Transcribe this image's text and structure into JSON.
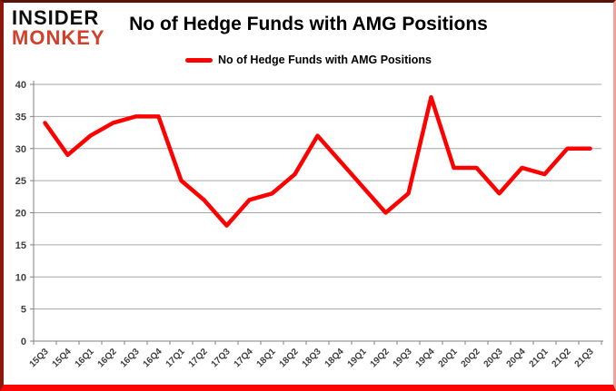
{
  "header": {
    "logo_line1": "INSIDER",
    "logo_line2": "MONKEY",
    "title": "No of Hedge Funds with AMG Positions"
  },
  "legend": {
    "label": "No of Hedge Funds with AMG Positions",
    "marker_color": "#ff0000"
  },
  "colors": {
    "line": "#ff0000",
    "logo_red": "#d23f2b",
    "frame_bottom_red": "#fb0505",
    "gridline_gray": "#a6a6a6",
    "axis_gray": "#808080",
    "tick_label_gray": "#3f3f3f"
  },
  "chart_data": {
    "type": "line",
    "title": "No of Hedge Funds with AMG Positions",
    "categories": [
      "15Q3",
      "15Q4",
      "16Q1",
      "16Q2",
      "16Q3",
      "16Q4",
      "17Q1",
      "17Q2",
      "17Q3",
      "17Q4",
      "18Q1",
      "18Q2",
      "18Q3",
      "18Q4",
      "19Q1",
      "19Q2",
      "19Q3",
      "19Q4",
      "20Q1",
      "20Q2",
      "20Q3",
      "20Q4",
      "21Q1",
      "21Q2",
      "21Q3"
    ],
    "values": [
      34,
      29,
      32,
      34,
      35,
      35,
      25,
      22,
      18,
      22,
      23,
      26,
      32,
      28,
      24,
      20,
      23,
      38,
      27,
      27,
      23,
      27,
      26,
      30,
      30
    ],
    "series_name": "No of Hedge Funds with AMG Positions",
    "xlabel": "",
    "ylabel": "",
    "ylim": [
      0,
      40
    ],
    "ytick_step": 5,
    "line_color": "#ff0000",
    "grid": true,
    "legend_position": "top"
  }
}
